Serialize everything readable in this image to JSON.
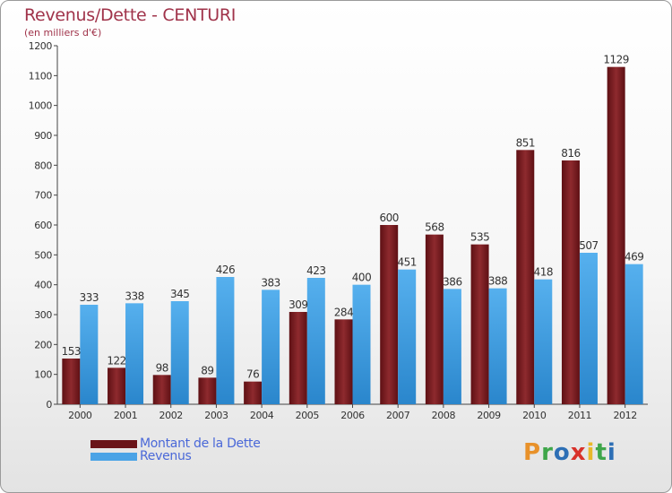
{
  "title": "Revenus/Dette - CENTURI",
  "subtitle": "(en milliers d'€)",
  "logo": {
    "text": "Proxiti",
    "colors": [
      "#e8912a",
      "#3fa64a",
      "#2d6fb5",
      "#d8312a",
      "#e8b82a",
      "#3fa64a",
      "#2d6fb5"
    ]
  },
  "chart_data": {
    "type": "bar",
    "title": "Revenus/Dette - CENTURI",
    "ylabel": "(en milliers d'€)",
    "xlabel": "",
    "ylim": [
      0,
      1200
    ],
    "yticks": [
      0,
      100,
      200,
      300,
      400,
      500,
      600,
      700,
      800,
      900,
      1000,
      1100,
      1200
    ],
    "grid": false,
    "legend_position": "bottom-left",
    "categories": [
      "2000",
      "2001",
      "2002",
      "2003",
      "2004",
      "2005",
      "2006",
      "2007",
      "2008",
      "2009",
      "2010",
      "2011",
      "2012"
    ],
    "series": [
      {
        "name": "Montant de la Dette",
        "color": "#7a1e22",
        "values": [
          153,
          122,
          98,
          89,
          76,
          309,
          284,
          600,
          568,
          535,
          851,
          816,
          1129
        ]
      },
      {
        "name": "Revenus",
        "color": "#4aa3e6",
        "values": [
          333,
          338,
          345,
          426,
          383,
          423,
          400,
          451,
          386,
          388,
          418,
          507,
          469
        ]
      }
    ]
  }
}
